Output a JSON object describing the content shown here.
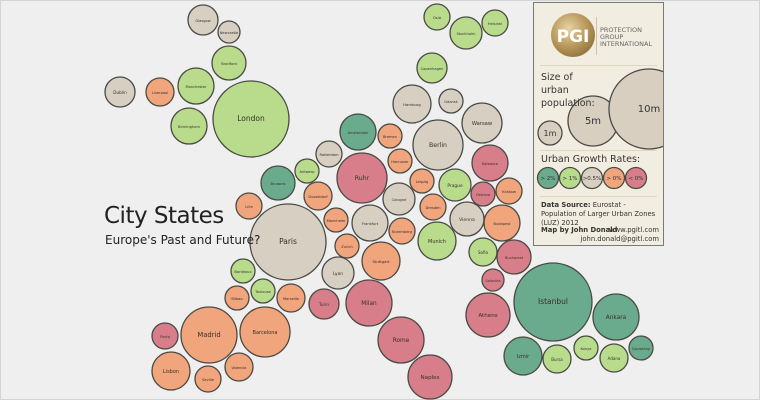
{
  "title": "City States",
  "subtitle": "Europe's Past and Future?",
  "growth_colors": {
    "gt2": "#6aab8e",
    "gt1": "#b8dc8c",
    "gt05": "#d6cfc2",
    "gt0": "#f0a57c",
    "lt0": "#d87e8a"
  },
  "cities": [
    {
      "name": "Glasgow",
      "growth": "gt05"
    },
    {
      "name": "Newcastle",
      "growth": "gt05"
    },
    {
      "name": "Bradford",
      "growth": "gt1"
    },
    {
      "name": "Dublin",
      "growth": "gt05"
    },
    {
      "name": "Liverpool",
      "growth": "gt0"
    },
    {
      "name": "Manchester",
      "growth": "gt1"
    },
    {
      "name": "Birmingham",
      "growth": "gt1"
    },
    {
      "name": "London",
      "growth": "gt1"
    },
    {
      "name": "Antwerp",
      "growth": "gt1"
    },
    {
      "name": "Brussels",
      "growth": "gt2"
    },
    {
      "name": "Oslo",
      "growth": "gt1"
    },
    {
      "name": "Stockholm",
      "growth": "gt1"
    },
    {
      "name": "Helsinki",
      "growth": "gt1"
    },
    {
      "name": "Copenhagen",
      "growth": "gt1"
    },
    {
      "name": "Hamburg",
      "growth": "gt05"
    },
    {
      "name": "Gdansk",
      "growth": "gt05"
    },
    {
      "name": "Warsaw",
      "growth": "gt05"
    },
    {
      "name": "Berlin",
      "growth": "gt05"
    },
    {
      "name": "Amsterdam",
      "growth": "gt2"
    },
    {
      "name": "Bremen",
      "growth": "gt0"
    },
    {
      "name": "Rotterdam",
      "growth": "gt05"
    },
    {
      "name": "Hannover",
      "growth": "gt0"
    },
    {
      "name": "Ruhr",
      "growth": "lt0"
    },
    {
      "name": "Leipzig",
      "growth": "gt0"
    },
    {
      "name": "Prague",
      "growth": "gt1"
    },
    {
      "name": "Katowice",
      "growth": "lt0"
    },
    {
      "name": "Ostrava",
      "growth": "lt0"
    },
    {
      "name": "Krakow",
      "growth": "gt0"
    },
    {
      "name": "Dusseldorf",
      "growth": "gt0"
    },
    {
      "name": "Cologne",
      "growth": "gt05"
    },
    {
      "name": "Dresden",
      "growth": "gt0"
    },
    {
      "name": "Vienna",
      "growth": "gt05"
    },
    {
      "name": "Budapest",
      "growth": "gt0"
    },
    {
      "name": "Mannheim",
      "growth": "gt0"
    },
    {
      "name": "Frankfurt",
      "growth": "gt05"
    },
    {
      "name": "Nuremberg",
      "growth": "gt0"
    },
    {
      "name": "Munich",
      "growth": "gt1"
    },
    {
      "name": "Sofia",
      "growth": "gt1"
    },
    {
      "name": "Bucharest",
      "growth": "lt0"
    },
    {
      "name": "Salonika",
      "growth": "lt0"
    },
    {
      "name": "Lille",
      "growth": "gt0"
    },
    {
      "name": "Paris",
      "growth": "gt05"
    },
    {
      "name": "Zurich",
      "growth": "gt0"
    },
    {
      "name": "Stuttgart",
      "growth": "gt0"
    },
    {
      "name": "Lyon",
      "growth": "gt05"
    },
    {
      "name": "Bordeaux",
      "growth": "gt1"
    },
    {
      "name": "Toulouse",
      "growth": "gt1"
    },
    {
      "name": "Bilbao",
      "growth": "gt0"
    },
    {
      "name": "Marseille",
      "growth": "gt0"
    },
    {
      "name": "Turin",
      "growth": "lt0"
    },
    {
      "name": "Milan",
      "growth": "lt0"
    },
    {
      "name": "Rome",
      "growth": "lt0"
    },
    {
      "name": "Naples",
      "growth": "lt0"
    },
    {
      "name": "Porto",
      "growth": "lt0"
    },
    {
      "name": "Madrid",
      "growth": "gt0"
    },
    {
      "name": "Barcelona",
      "growth": "gt0"
    },
    {
      "name": "Lisbon",
      "growth": "gt0"
    },
    {
      "name": "Seville",
      "growth": "gt0"
    },
    {
      "name": "Valencia",
      "growth": "gt0"
    },
    {
      "name": "Athens",
      "growth": "lt0"
    },
    {
      "name": "Istanbul",
      "growth": "gt2"
    },
    {
      "name": "Ankara",
      "growth": "gt2"
    },
    {
      "name": "Izmir",
      "growth": "gt2"
    },
    {
      "name": "Bursa",
      "growth": "gt1"
    },
    {
      "name": "Konya",
      "growth": "gt1"
    },
    {
      "name": "Adana",
      "growth": "gt1"
    },
    {
      "name": "Gaziantep",
      "growth": "gt2"
    }
  ],
  "legend": {
    "logo_text": "PGI",
    "org_name": "PROTECTION GROUP INTERNATIONAL",
    "size_title": "Size of urban population:",
    "sizes": [
      "1m",
      "5m",
      "10m"
    ],
    "growth_title": "Urban Growth Rates:",
    "growth_items": [
      {
        "label": "> 2%",
        "growth": "gt2"
      },
      {
        "label": "> 1%",
        "growth": "gt1"
      },
      {
        "label": ">0.5%",
        "growth": "gt05"
      },
      {
        "label": "> 0%",
        "growth": "gt0"
      },
      {
        "label": "< 0%",
        "growth": "lt0"
      }
    ],
    "source_label": "Data Source:",
    "source_text": "Eurostat  - Population of Larger Urban Zones (LUZ) 2012",
    "author": "Map by John Donald",
    "website": "www.pgitl.com",
    "email": "john.donald@pgitl.com"
  }
}
